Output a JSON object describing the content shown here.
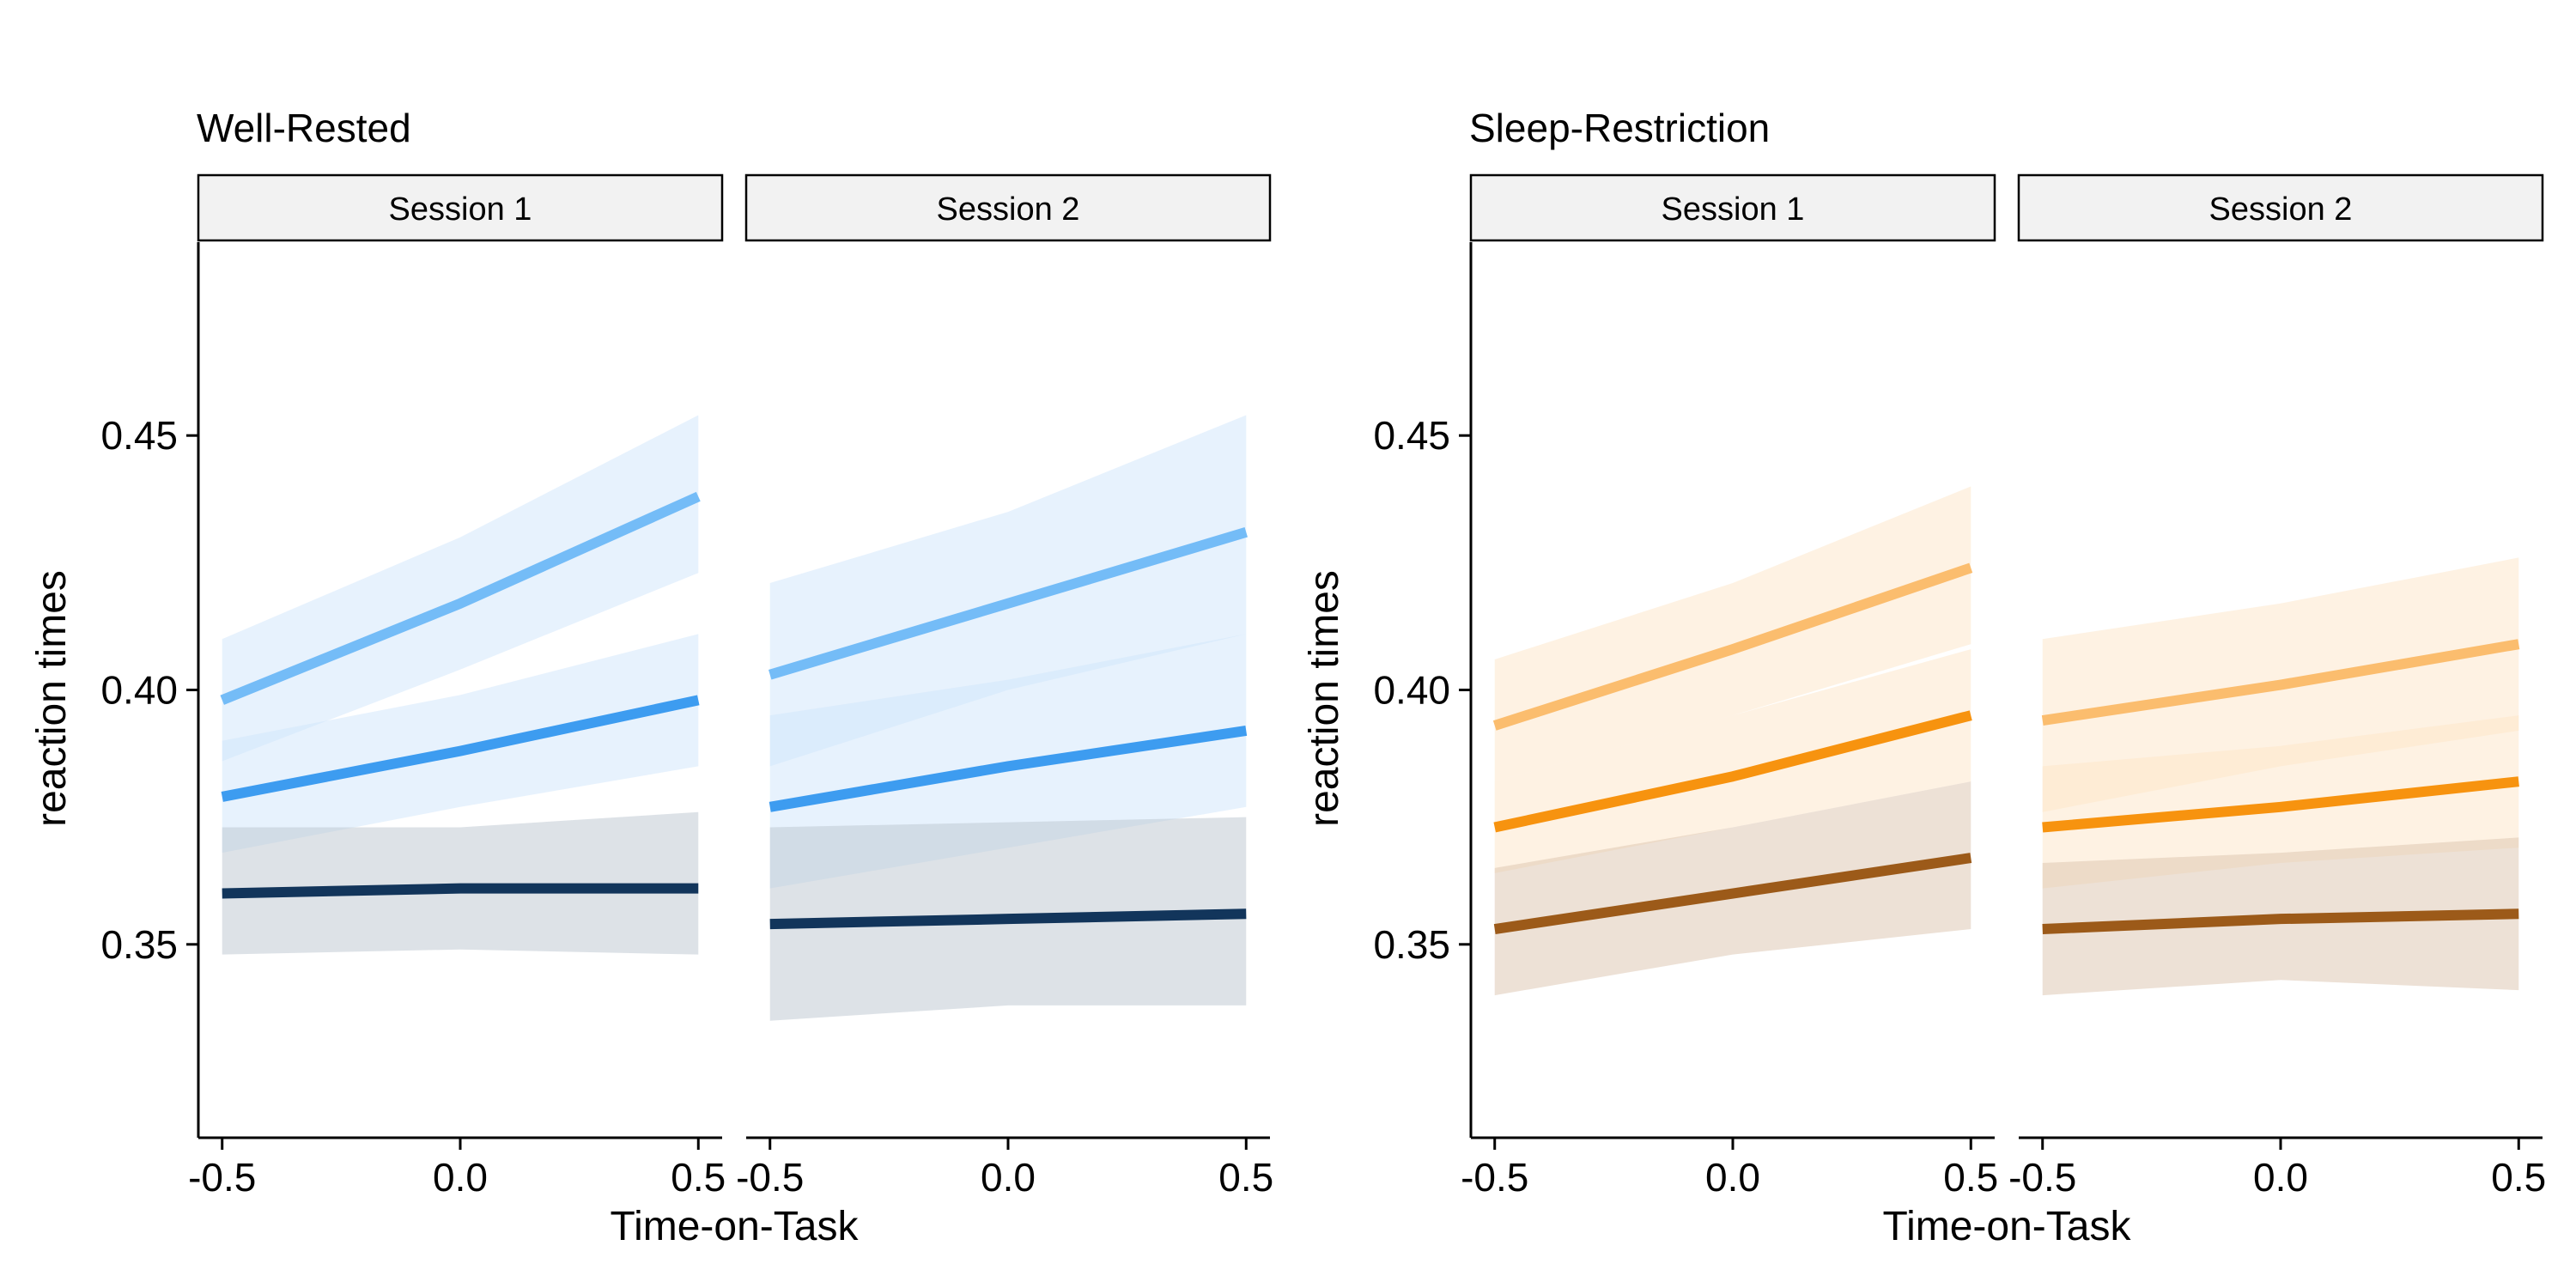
{
  "chart_data": {
    "type": "line",
    "y_axis": {
      "label": "reaction times",
      "range": [
        0.312,
        0.488
      ],
      "ticks": [
        0.35,
        0.4,
        0.45
      ],
      "tick_labels": [
        "0.35",
        "0.40",
        "0.45"
      ]
    },
    "x_axis": {
      "label": "Time-on-Task",
      "range": [
        -0.55,
        0.55
      ],
      "ticks": [
        -0.5,
        0.0,
        0.5
      ],
      "tick_labels": [
        "-0.5",
        "0.0",
        "0.5"
      ]
    },
    "x": [
      -0.5,
      0.0,
      0.5
    ],
    "grid": false,
    "legend": "none",
    "panels": [
      {
        "title": "Well-Rested",
        "facets": [
          {
            "strip": "Session 1",
            "series": [
              {
                "color": "#74bcf7",
                "band_color": "#cfe6fb",
                "values": [
                  0.398,
                  0.417,
                  0.438
                ],
                "lower": [
                  0.386,
                  0.404,
                  0.423
                ],
                "upper": [
                  0.41,
                  0.43,
                  0.454
                ]
              },
              {
                "color": "#3d9cf0",
                "band_color": "#cfe6fb",
                "values": [
                  0.379,
                  0.388,
                  0.398
                ],
                "lower": [
                  0.368,
                  0.377,
                  0.385
                ],
                "upper": [
                  0.39,
                  0.399,
                  0.411
                ]
              },
              {
                "color": "#12355b",
                "band_color": "#bcc6cf",
                "values": [
                  0.36,
                  0.361,
                  0.361
                ],
                "lower": [
                  0.348,
                  0.349,
                  0.348
                ],
                "upper": [
                  0.373,
                  0.373,
                  0.376
                ]
              }
            ]
          },
          {
            "strip": "Session 2",
            "series": [
              {
                "color": "#74bcf7",
                "band_color": "#cfe6fb",
                "values": [
                  0.403,
                  0.417,
                  0.431
                ],
                "lower": [
                  0.385,
                  0.4,
                  0.411
                ],
                "upper": [
                  0.421,
                  0.435,
                  0.454
                ]
              },
              {
                "color": "#3d9cf0",
                "band_color": "#cfe6fb",
                "values": [
                  0.377,
                  0.385,
                  0.392
                ],
                "lower": [
                  0.361,
                  0.369,
                  0.377
                ],
                "upper": [
                  0.395,
                  0.402,
                  0.411
                ]
              },
              {
                "color": "#12355b",
                "band_color": "#bcc6cf",
                "values": [
                  0.354,
                  0.355,
                  0.356
                ],
                "lower": [
                  0.335,
                  0.338,
                  0.338
                ],
                "upper": [
                  0.373,
                  0.374,
                  0.375
                ]
              }
            ]
          }
        ]
      },
      {
        "title": "Sleep-Restriction",
        "facets": [
          {
            "strip": "Session 1",
            "series": [
              {
                "color": "#fbbd6e",
                "band_color": "#fde6c8",
                "values": [
                  0.393,
                  0.408,
                  0.424
                ],
                "lower": [
                  0.382,
                  0.395,
                  0.409
                ],
                "upper": [
                  0.406,
                  0.421,
                  0.44
                ]
              },
              {
                "color": "#f7930f",
                "band_color": "#fde6c8",
                "values": [
                  0.373,
                  0.383,
                  0.395
                ],
                "lower": [
                  0.364,
                  0.373,
                  0.382
                ],
                "upper": [
                  0.382,
                  0.395,
                  0.408
                ]
              },
              {
                "color": "#9c5a19",
                "band_color": "#dcc4ad",
                "values": [
                  0.353,
                  0.36,
                  0.367
                ],
                "lower": [
                  0.34,
                  0.348,
                  0.353
                ],
                "upper": [
                  0.365,
                  0.373,
                  0.382
                ]
              }
            ]
          },
          {
            "strip": "Session 2",
            "series": [
              {
                "color": "#fbbd6e",
                "band_color": "#fde6c8",
                "values": [
                  0.394,
                  0.401,
                  0.409
                ],
                "lower": [
                  0.376,
                  0.385,
                  0.392
                ],
                "upper": [
                  0.41,
                  0.417,
                  0.426
                ]
              },
              {
                "color": "#f7930f",
                "band_color": "#fde6c8",
                "values": [
                  0.373,
                  0.377,
                  0.382
                ],
                "lower": [
                  0.361,
                  0.366,
                  0.369
                ],
                "upper": [
                  0.385,
                  0.389,
                  0.395
                ]
              },
              {
                "color": "#9c5a19",
                "band_color": "#dcc4ad",
                "values": [
                  0.353,
                  0.355,
                  0.356
                ],
                "lower": [
                  0.34,
                  0.343,
                  0.341
                ],
                "upper": [
                  0.366,
                  0.368,
                  0.371
                ]
              }
            ]
          }
        ]
      }
    ]
  }
}
